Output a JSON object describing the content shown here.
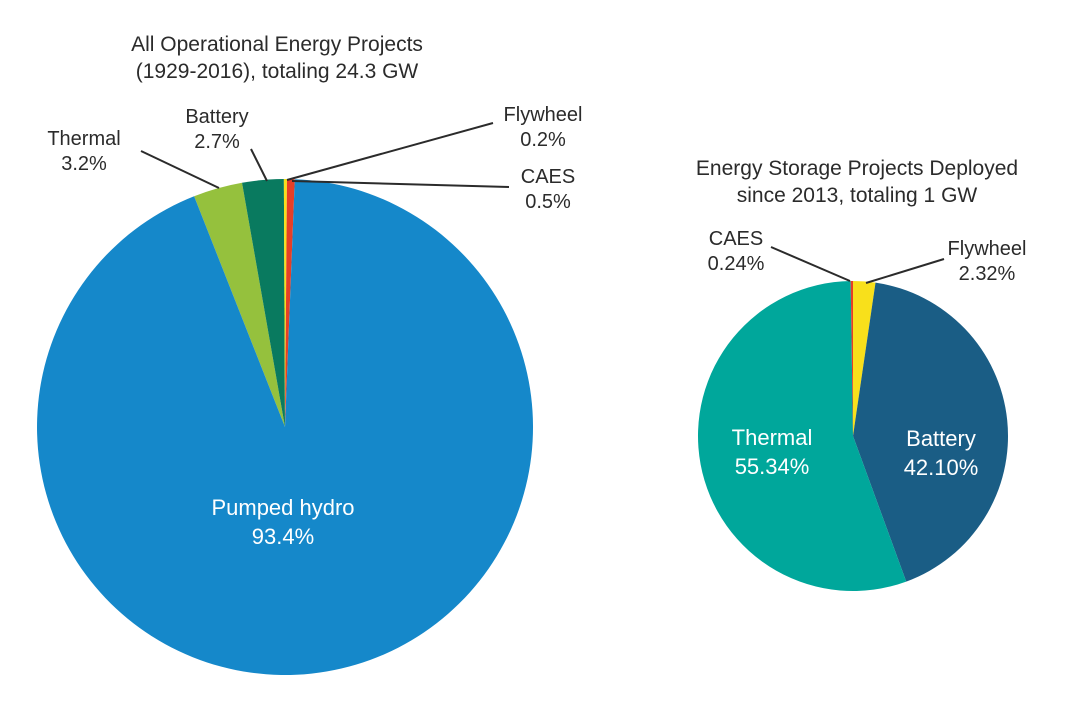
{
  "figure": {
    "background_color": "#ffffff",
    "text_color": "#2b2b2b"
  },
  "chart_data": [
    {
      "type": "pie",
      "title": "All Operational Energy Projects (1929-2016), totaling 24.3 GW",
      "title_lines": [
        "All Operational Energy Projects",
        "(1929-2016), totaling 24.3 GW"
      ],
      "legend_position": "none",
      "direction": "clockwise",
      "slices": [
        {
          "label": "Thermal",
          "value": 3.2,
          "pct_text": "3.2%",
          "color": "#95c13d"
        },
        {
          "label": "Battery",
          "value": 2.7,
          "pct_text": "2.7%",
          "color": "#097a5f"
        },
        {
          "label": "Flywheel",
          "value": 0.2,
          "pct_text": "0.2%",
          "color": "#f8e01b"
        },
        {
          "label": "CAES",
          "value": 0.5,
          "pct_text": "0.5%",
          "color": "#e63f27"
        },
        {
          "label": "Pumped hydro",
          "value": 93.4,
          "pct_text": "93.4%",
          "color": "#1588ca"
        }
      ]
    },
    {
      "type": "pie",
      "title": "Energy Storage Projects Deployed since 2013, totaling 1 GW",
      "title_lines": [
        "Energy Storage Projects Deployed",
        "since 2013, totaling 1 GW"
      ],
      "legend_position": "none",
      "direction": "clockwise",
      "slices": [
        {
          "label": "Flywheel",
          "value": 2.32,
          "pct_text": "2.32%",
          "color": "#f8e01b"
        },
        {
          "label": "Battery",
          "value": 42.1,
          "pct_text": "42.10%",
          "color": "#1a5d85"
        },
        {
          "label": "Thermal",
          "value": 55.34,
          "pct_text": "55.34%",
          "color": "#00a79b"
        },
        {
          "label": "CAES",
          "value": 0.24,
          "pct_text": "0.24%",
          "color": "#e63f27"
        }
      ]
    }
  ]
}
